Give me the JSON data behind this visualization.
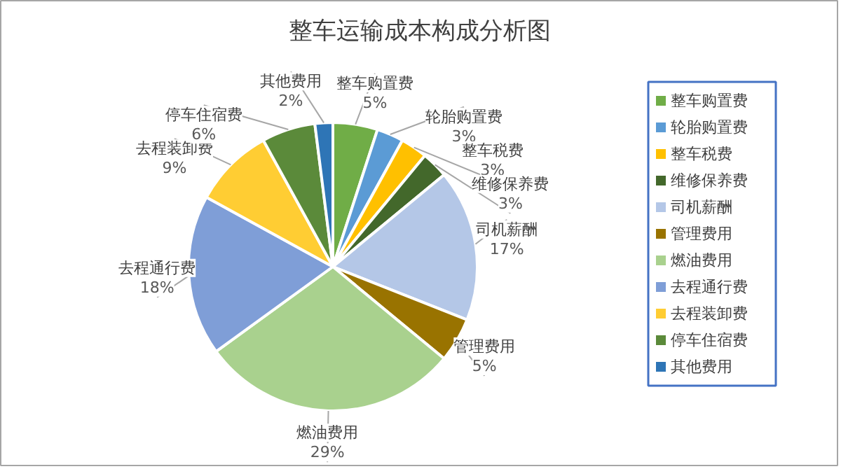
{
  "chart_data": {
    "type": "pie",
    "title": "整车运输成本构成分析图",
    "categories": [
      "整车购置费",
      "轮胎购置费",
      "整车税费",
      "维修保养费",
      "司机薪酬",
      "管理费用",
      "燃油费用",
      "去程通行费",
      "去程装卸费",
      "停车住宿费",
      "其他费用"
    ],
    "values": [
      5,
      3,
      3,
      3,
      17,
      5,
      29,
      18,
      9,
      6,
      2
    ],
    "colors": [
      "#70ad47",
      "#5b9bd5",
      "#ffc000",
      "#43682b",
      "#b4c7e7",
      "#997300",
      "#a9d18e",
      "#7f9ed7",
      "#ffcd33",
      "#5b8a3a",
      "#2e75b6"
    ],
    "value_labels": [
      "5%",
      "3%",
      "3%",
      "3%",
      "17%",
      "5%",
      "29%",
      "18%",
      "9%",
      "6%",
      "2%"
    ],
    "legend": "right"
  }
}
